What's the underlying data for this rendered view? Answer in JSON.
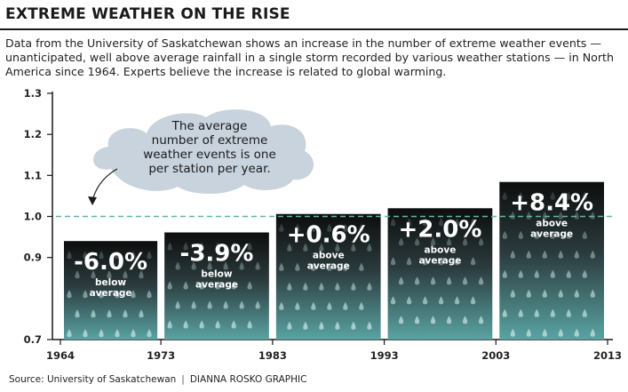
{
  "header": {
    "title": "EXTREME WEATHER ON THE RISE",
    "subtitle": "Data from the University of Saskatchewan shows an increase in the number of extreme weather events — unanticipated, well above average rainfall in a single storm recorded by various weather stations — in North America since 1964. Experts believe the increase is related to global warming."
  },
  "callout": {
    "lines": [
      "The average",
      "number of extreme",
      "weather events is one",
      "per station per year."
    ]
  },
  "footer": {
    "source": "Source: University of Saskatchewan",
    "credit": "DIANNA ROSKO GRAPHIC"
  },
  "colors": {
    "bar_top": "#0d0d0d",
    "bar_bottom": "#5aa3a3",
    "drop": "#b9d9d9",
    "reference_line": "#5db8a6",
    "cloud": "#c8d3de"
  },
  "chart_data": {
    "type": "bar",
    "x_ticks": [
      "1964",
      "1973",
      "1983",
      "1993",
      "2003",
      "2013"
    ],
    "y_ticks": [
      "0.7",
      "0.9",
      "1.0",
      "1.1",
      "1.2",
      "1.3"
    ],
    "ylim": [
      0.7,
      1.3
    ],
    "reference_value": 1.0,
    "bars": [
      {
        "start": 1964,
        "end": 1973,
        "value": 0.94,
        "pct": "-6.0%",
        "note_lines": [
          "below",
          "average"
        ]
      },
      {
        "start": 1973,
        "end": 1983,
        "value": 0.961,
        "pct": "-3.9%",
        "note_lines": [
          "below",
          "average"
        ]
      },
      {
        "start": 1983,
        "end": 1993,
        "value": 1.006,
        "pct": "+0.6%",
        "note_lines": [
          "above",
          "average"
        ]
      },
      {
        "start": 1993,
        "end": 2003,
        "value": 1.02,
        "pct": "+2.0%",
        "note_lines": [
          "above",
          "average"
        ]
      },
      {
        "start": 2003,
        "end": 2013,
        "value": 1.084,
        "pct": "+8.4%",
        "note_lines": [
          "above",
          "average"
        ]
      }
    ]
  }
}
